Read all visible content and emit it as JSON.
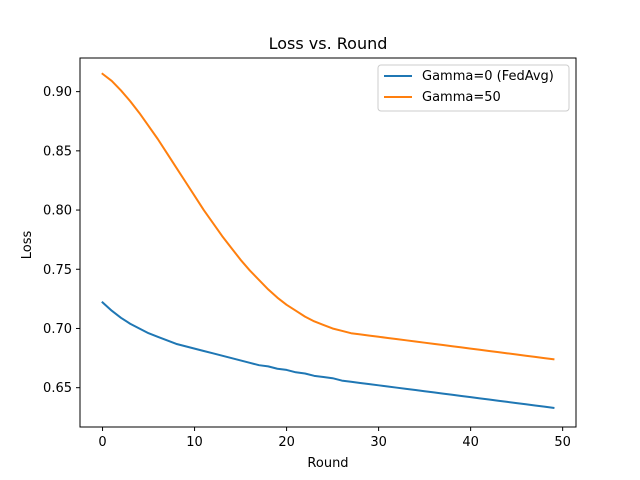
{
  "chart_data": {
    "type": "line",
    "title": "Loss vs. Round",
    "xlabel": "Round",
    "ylabel": "Loss",
    "xlim": [
      -2.45,
      51.45
    ],
    "ylim": [
      0.6168,
      0.9284
    ],
    "xticks": [
      0,
      10,
      20,
      30,
      40,
      50
    ],
    "xtick_labels": [
      "0",
      "10",
      "20",
      "30",
      "40",
      "50"
    ],
    "yticks": [
      0.65,
      0.7,
      0.75,
      0.8,
      0.85,
      0.9
    ],
    "ytick_labels": [
      "0.65",
      "0.70",
      "0.75",
      "0.80",
      "0.85",
      "0.90"
    ],
    "grid": false,
    "legend_position": "top-right",
    "x": [
      0,
      1,
      2,
      3,
      4,
      5,
      6,
      7,
      8,
      9,
      10,
      11,
      12,
      13,
      14,
      15,
      16,
      17,
      18,
      19,
      20,
      21,
      22,
      23,
      24,
      25,
      26,
      27,
      28,
      29,
      30,
      31,
      32,
      33,
      34,
      35,
      36,
      37,
      38,
      39,
      40,
      41,
      42,
      43,
      44,
      45,
      46,
      47,
      48,
      49
    ],
    "series": [
      {
        "name": "Gamma=0 (FedAvg)",
        "color": "#1f77b4",
        "values": [
          0.722,
          0.715,
          0.709,
          0.704,
          0.7,
          0.696,
          0.693,
          0.69,
          0.687,
          0.685,
          0.683,
          0.681,
          0.679,
          0.677,
          0.675,
          0.673,
          0.671,
          0.669,
          0.668,
          0.666,
          0.665,
          0.663,
          0.662,
          0.66,
          0.659,
          0.658,
          0.656,
          0.655,
          0.654,
          0.653,
          0.652,
          0.651,
          0.65,
          0.649,
          0.648,
          0.647,
          0.646,
          0.645,
          0.644,
          0.643,
          0.642,
          0.641,
          0.64,
          0.639,
          0.638,
          0.637,
          0.636,
          0.635,
          0.634,
          0.633
        ]
      },
      {
        "name": "Gamma=50",
        "color": "#ff7f0e",
        "values": [
          0.915,
          0.909,
          0.901,
          0.892,
          0.882,
          0.871,
          0.86,
          0.848,
          0.836,
          0.824,
          0.812,
          0.8,
          0.789,
          0.778,
          0.768,
          0.758,
          0.749,
          0.741,
          0.733,
          0.726,
          0.72,
          0.715,
          0.71,
          0.706,
          0.703,
          0.7,
          0.698,
          0.696,
          0.695,
          0.694,
          0.693,
          0.692,
          0.691,
          0.69,
          0.689,
          0.688,
          0.687,
          0.686,
          0.685,
          0.684,
          0.683,
          0.682,
          0.681,
          0.68,
          0.679,
          0.678,
          0.677,
          0.676,
          0.675,
          0.674
        ]
      }
    ]
  }
}
